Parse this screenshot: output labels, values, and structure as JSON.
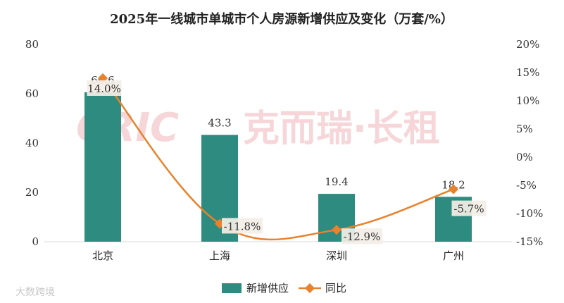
{
  "chart_data": {
    "type": "bar",
    "title": "2025年一线城市单城市个人房源新增供应及变化（万套/%）",
    "categories": [
      "北京",
      "上海",
      "深圳",
      "广州"
    ],
    "series": [
      {
        "name": "新增供应",
        "type": "bar",
        "axis": "left",
        "color": "#2e8b7f",
        "values": [
          60.6,
          43.3,
          19.4,
          18.2
        ]
      },
      {
        "name": "同比",
        "type": "line",
        "axis": "right",
        "color": "#e8822c",
        "values": [
          14.0,
          -11.8,
          -12.9,
          -5.7
        ],
        "labels": [
          "14.0%",
          "-11.8%",
          "-12.9%",
          "-5.7%"
        ]
      }
    ],
    "ylim": [
      0,
      80
    ],
    "y_ticks": [
      "0",
      "20",
      "40",
      "60",
      "80"
    ],
    "y2lim": [
      -15,
      20
    ],
    "y2_ticks": [
      "-15%",
      "-10%",
      "-5%",
      "0%",
      "5%",
      "10%",
      "15%",
      "20%"
    ],
    "legend": "bottom",
    "grid": false
  },
  "watermark": {
    "logo": "CRIC",
    "text": "克而瑞·长租",
    "source": "大数跨境"
  }
}
